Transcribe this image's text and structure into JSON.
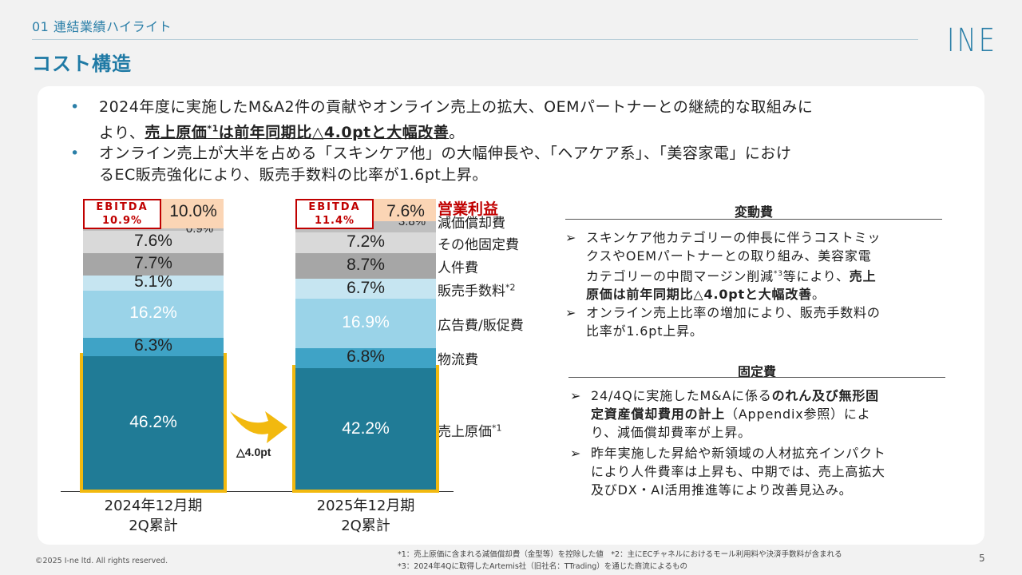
{
  "header": {
    "section": "01 連結業績ハイライト",
    "title": "コスト構造",
    "logo": "INE"
  },
  "bullets": [
    {
      "line1": "2024年度に実施したM&A2件の貢献やオンライン売上の拡大、OEMパートナーとの継続的な取組みに",
      "line2_pre": "より、",
      "line2_bold": "売上原価",
      "line2_sup": "*1",
      "line2_bold2": "は前年同期比△4.0ptと大幅改善",
      "line2_post": "。"
    },
    {
      "line1": "オンライン売上が大半を占める「スキンケア他」の大幅伸長や、「ヘアケア系」、「美容家電」におけ",
      "line2": "るEC販売強化により、販売手数料の比率が1.6pt上昇。"
    }
  ],
  "chart_data": {
    "type": "bar",
    "stacked": true,
    "categories": [
      "2024年12月期 2Q累計",
      "2025年12月期 2Q累計"
    ],
    "category_lines": [
      [
        "2024年12月期",
        "2Q累計"
      ],
      [
        "2025年12月期",
        "2Q累計"
      ]
    ],
    "series": [
      {
        "name": "売上原価*1",
        "values": [
          46.2,
          42.2
        ],
        "labels": [
          "46.2%",
          "42.2%"
        ],
        "color": "#207b96"
      },
      {
        "name": "物流費",
        "values": [
          6.3,
          6.8
        ],
        "labels": [
          "6.3%",
          "6.8%"
        ],
        "color": "#3fa3c6"
      },
      {
        "name": "広告費/販促費",
        "values": [
          16.2,
          16.9
        ],
        "labels": [
          "16.2%",
          "16.9%"
        ],
        "color": "#9ad3e8"
      },
      {
        "name": "販売手数料*2",
        "values": [
          5.1,
          6.7
        ],
        "labels": [
          "5.1%",
          "6.7%"
        ],
        "color": "#c6e5f1"
      },
      {
        "name": "人件費",
        "values": [
          7.7,
          8.7
        ],
        "labels": [
          "7.7%",
          "8.7%"
        ],
        "color": "#a6a6a6"
      },
      {
        "name": "その他固定費",
        "values": [
          7.6,
          7.2
        ],
        "labels": [
          "7.6%",
          "7.2%"
        ],
        "color": "#d9d9d9"
      },
      {
        "name": "減価償却費",
        "values": [
          0.9,
          3.8
        ],
        "labels": [
          "0.9%",
          "3.8%"
        ],
        "color": "#bfbfbf"
      },
      {
        "name": "営業利益",
        "values": [
          10.0,
          7.6
        ],
        "labels": [
          "10.0%",
          "7.6%"
        ],
        "color": "#fbd5b5"
      }
    ],
    "ebitda": [
      {
        "title": "EBITDA",
        "value": "10.9%"
      },
      {
        "title": "EBITDA",
        "value": "11.4%"
      }
    ],
    "change_annotation": "△4.0pt",
    "highlight_color": "#f2b90f",
    "operating_profit_color": "#c00000"
  },
  "right": {
    "variable": {
      "heading": "変動費",
      "items": [
        {
          "lines": [
            "スキンケア他カテゴリーの伸長に伴うコストミッ",
            "クスやOEMパートナーとの取り組み、美容家電"
          ],
          "line3_pre": "カテゴリーの中間マージン削減",
          "line3_sup": "*3",
          "line3_mid": "等により、",
          "line3_bold": "売上",
          "line4_bold": "原価は前年同期比△4.0ptと大幅改善",
          "line4_post": "。"
        },
        {
          "lines": [
            "オンライン売上比率の増加により、販売手数料の",
            "比率が1.6pt上昇。"
          ]
        }
      ]
    },
    "fixed": {
      "heading": "固定費",
      "items": [
        {
          "line1_pre": "24/4Qに実施したM&Aに係る",
          "line1_bold": "のれん及び無形固",
          "line2_bold": "定資産償却費用の計上",
          "line2_post": "（Appendix参照）によ",
          "line3": "り、減価償却費率が上昇。"
        },
        {
          "lines": [
            "昨年実施した昇給や新領域の人材拡充インパクト",
            "により人件費率は上昇も、中期では、売上高拡大",
            "及びDX・AI活用推進等により改善見込み。"
          ]
        }
      ]
    }
  },
  "footnotes": {
    "line1": "*1：売上原価に含まれる減価償却費（金型等）を控除した値　*2：主にECチャネルにおけるモール利用料や決済手数料が含まれる",
    "line2": "*3：2024年4Qに取得したArtemis社（旧社名：TTrading）を通じた商流によるもの"
  },
  "footer": {
    "copyright": "©2025 I-ne ltd. All rights reserved.",
    "page_number": "5"
  }
}
